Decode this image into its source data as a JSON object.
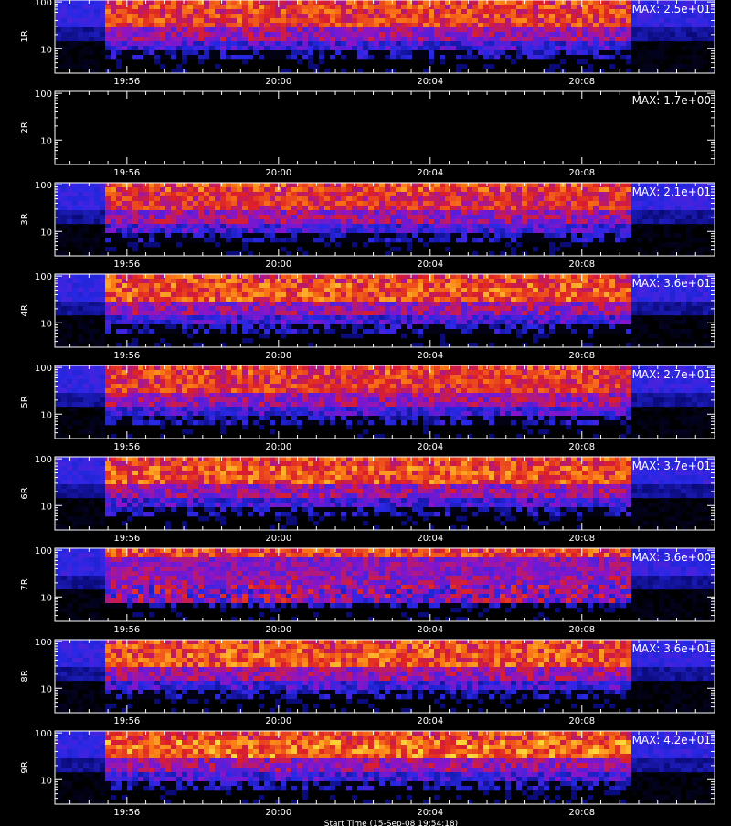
{
  "chart_data": {
    "type": "heatmap",
    "x_tick_labels": [
      "19:56",
      "20:00",
      "20:04",
      "20:08"
    ],
    "x_tick_minutes": [
      56,
      60,
      64,
      68
    ],
    "x_range_minutes": [
      54.1,
      71.5
    ],
    "data_range_minutes": [
      55.4,
      69.2
    ],
    "y_scale": "log",
    "y_range": [
      3,
      110
    ],
    "y_tick_labels": [
      "100",
      "10"
    ],
    "y_tick_values": [
      100,
      10
    ],
    "panels": [
      {
        "label": "1R",
        "max": "MAX: 2.5e+01",
        "peak": 0.9
      },
      {
        "label": "2R",
        "max": "MAX: 1.7e+00",
        "peak": 0.0
      },
      {
        "label": "3R",
        "max": "MAX: 2.1e+01",
        "peak": 0.85
      },
      {
        "label": "4R",
        "max": "MAX: 3.6e+01",
        "peak": 0.95
      },
      {
        "label": "5R",
        "max": "MAX: 2.7e+01",
        "peak": 0.88
      },
      {
        "label": "6R",
        "max": "MAX: 3.7e+01",
        "peak": 0.95
      },
      {
        "label": "7R",
        "max": "MAX: 3.6e+00",
        "peak": 0.65
      },
      {
        "label": "8R",
        "max": "MAX: 3.6e+01",
        "peak": 0.95
      },
      {
        "label": "9R",
        "max": "MAX: 4.2e+01",
        "peak": 1.0
      }
    ],
    "footer": "Start Time (15-Sep-08 19:54:18)"
  },
  "colors": {
    "background": "#000000",
    "axes": "#ffffff"
  }
}
